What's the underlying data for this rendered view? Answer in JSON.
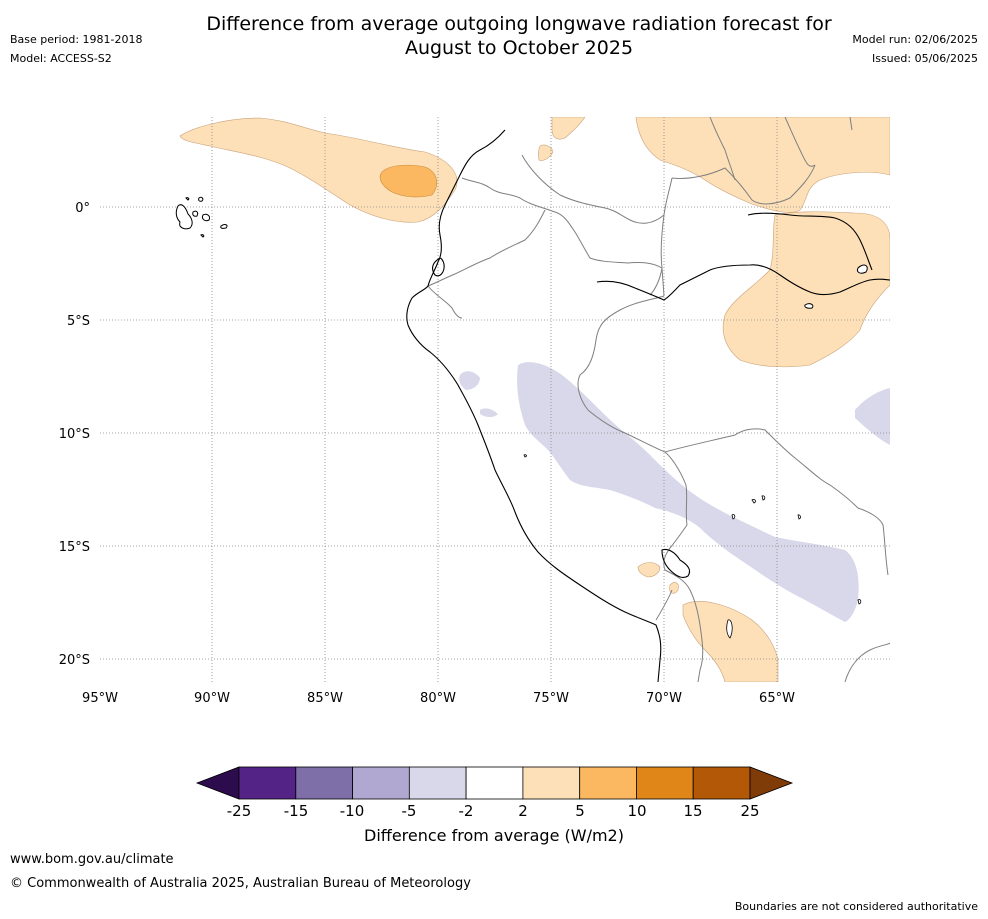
{
  "header": {
    "title_line1": "Difference from average outgoing longwave radiation forecast for",
    "title_line2": "August to October 2025",
    "base_period": "Base period: 1981-2018",
    "model": "Model: ACCESS-S2",
    "model_run": "Model run: 02/06/2025",
    "issued": "Issued: 05/06/2025"
  },
  "map": {
    "lon_labels": [
      "95°W",
      "90°W",
      "85°W",
      "80°W",
      "75°W",
      "70°W",
      "65°W"
    ],
    "lat_labels": [
      "0°",
      "5°S",
      "10°S",
      "15°S",
      "20°S"
    ],
    "lon_range": [
      -95,
      -60
    ],
    "lat_range": [
      4,
      -21
    ],
    "grid": true
  },
  "colorbar": {
    "ticks": [
      "-25",
      "-15",
      "-10",
      "-5",
      "-2",
      "2",
      "5",
      "10",
      "15",
      "25"
    ],
    "colors": [
      "#2d0c4e",
      "#532485",
      "#7f6fa8",
      "#b0a8d0",
      "#d8d8ea",
      "#ffffff",
      "#fde0b8",
      "#fbb861",
      "#e08518",
      "#b35806",
      "#7f3b08"
    ],
    "label": "Difference from average (W/m2)"
  },
  "footer": {
    "url": "www.bom.gov.au/climate",
    "copyright": "© Commonwealth of Australia 2025, Australian Bureau of Meteorology",
    "disclaimer": "Boundaries are not considered authoritative"
  }
}
